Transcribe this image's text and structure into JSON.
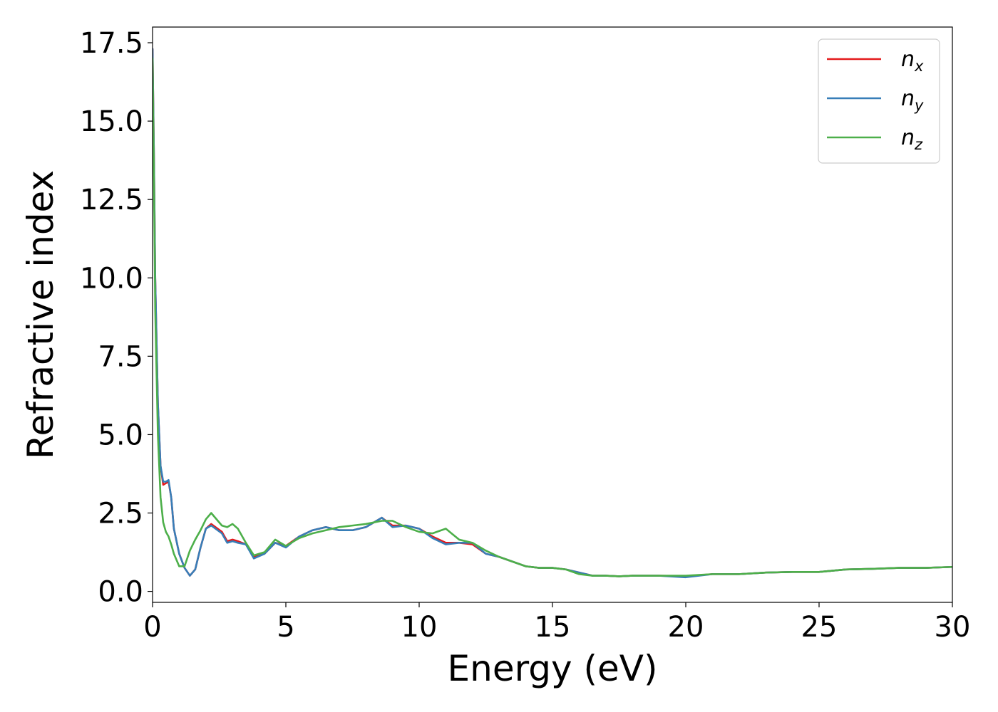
{
  "chart_data": {
    "type": "line",
    "xlabel": "Energy (eV)",
    "ylabel": "Refractive index",
    "xlim": [
      0,
      30
    ],
    "ylim": [
      -0.35,
      18.0
    ],
    "xticks": [
      0,
      5,
      10,
      15,
      20,
      25,
      30
    ],
    "xtick_labels": [
      "0",
      "5",
      "10",
      "15",
      "20",
      "25",
      "30"
    ],
    "yticks": [
      0,
      2.5,
      5,
      7.5,
      10,
      12.5,
      15,
      17.5
    ],
    "ytick_labels": [
      "0.0",
      "2.5",
      "5.0",
      "7.5",
      "10.0",
      "12.5",
      "15.0",
      "17.5"
    ],
    "grid": false,
    "legend_position": "top-right",
    "series": [
      {
        "name": "n",
        "subscript": "x",
        "color": "#e41a1c",
        "x": [
          0.0,
          0.05,
          0.1,
          0.2,
          0.3,
          0.4,
          0.5,
          0.6,
          0.7,
          0.8,
          1.0,
          1.2,
          1.4,
          1.6,
          1.8,
          2.0,
          2.2,
          2.6,
          2.8,
          3.0,
          3.2,
          3.5,
          3.8,
          4.2,
          4.6,
          5.0,
          5.5,
          6.0,
          6.5,
          7.0,
          7.5,
          8.0,
          8.6,
          9.0,
          9.5,
          10.0,
          10.5,
          11.0,
          11.5,
          12.0,
          12.5,
          13.0,
          13.5,
          14.0,
          14.5,
          15.0,
          15.5,
          16.0,
          16.5,
          17.0,
          17.5,
          18.0,
          19.0,
          20.0,
          21.0,
          22.0,
          23.0,
          24.0,
          25.0,
          26.0,
          27.0,
          28.0,
          29.0,
          30.0
        ],
        "y": [
          17.3,
          14.0,
          10.0,
          6.0,
          4.0,
          3.4,
          3.45,
          3.5,
          3.0,
          2.0,
          1.2,
          0.75,
          0.5,
          0.7,
          1.4,
          2.0,
          2.15,
          1.9,
          1.6,
          1.65,
          1.6,
          1.5,
          1.1,
          1.2,
          1.55,
          1.45,
          1.75,
          1.95,
          2.05,
          1.95,
          1.95,
          2.05,
          2.35,
          2.1,
          2.1,
          2.0,
          1.75,
          1.55,
          1.55,
          1.5,
          1.2,
          1.1,
          0.95,
          0.8,
          0.75,
          0.75,
          0.7,
          0.6,
          0.5,
          0.5,
          0.48,
          0.5,
          0.5,
          0.48,
          0.55,
          0.55,
          0.6,
          0.62,
          0.62,
          0.7,
          0.72,
          0.75,
          0.75,
          0.78
        ]
      },
      {
        "name": "n",
        "subscript": "y",
        "color": "#377eb8",
        "x": [
          0.0,
          0.05,
          0.1,
          0.2,
          0.3,
          0.4,
          0.5,
          0.6,
          0.7,
          0.8,
          1.0,
          1.2,
          1.4,
          1.6,
          1.8,
          2.0,
          2.2,
          2.6,
          2.8,
          3.0,
          3.2,
          3.5,
          3.8,
          4.2,
          4.6,
          5.0,
          5.5,
          6.0,
          6.5,
          7.0,
          7.5,
          8.0,
          8.6,
          9.0,
          9.5,
          10.0,
          10.5,
          11.0,
          11.5,
          12.0,
          12.5,
          13.0,
          13.5,
          14.0,
          14.5,
          15.0,
          15.5,
          16.0,
          16.5,
          17.0,
          17.5,
          18.0,
          19.0,
          20.0,
          21.0,
          22.0,
          23.0,
          24.0,
          25.0,
          26.0,
          27.0,
          28.0,
          29.0,
          30.0
        ],
        "y": [
          17.3,
          14.0,
          10.0,
          6.0,
          4.0,
          3.5,
          3.5,
          3.55,
          3.0,
          2.0,
          1.2,
          0.75,
          0.5,
          0.7,
          1.4,
          2.0,
          2.1,
          1.85,
          1.55,
          1.6,
          1.55,
          1.5,
          1.05,
          1.2,
          1.55,
          1.4,
          1.75,
          1.95,
          2.05,
          1.95,
          1.95,
          2.05,
          2.35,
          2.05,
          2.1,
          2.0,
          1.7,
          1.5,
          1.55,
          1.55,
          1.2,
          1.1,
          0.95,
          0.8,
          0.75,
          0.75,
          0.7,
          0.6,
          0.5,
          0.5,
          0.48,
          0.5,
          0.5,
          0.45,
          0.55,
          0.55,
          0.6,
          0.62,
          0.62,
          0.7,
          0.72,
          0.75,
          0.75,
          0.78
        ]
      },
      {
        "name": "n",
        "subscript": "z",
        "color": "#4daf4a",
        "x": [
          0.0,
          0.05,
          0.1,
          0.2,
          0.3,
          0.4,
          0.5,
          0.6,
          0.7,
          0.8,
          1.0,
          1.2,
          1.4,
          1.6,
          1.8,
          2.0,
          2.2,
          2.6,
          2.8,
          3.0,
          3.2,
          3.5,
          3.8,
          4.2,
          4.6,
          5.0,
          5.5,
          6.0,
          6.5,
          7.0,
          7.5,
          8.0,
          8.6,
          9.0,
          9.5,
          10.0,
          10.5,
          11.0,
          11.5,
          12.0,
          12.5,
          13.0,
          13.5,
          14.0,
          14.5,
          15.0,
          15.5,
          16.0,
          16.5,
          17.0,
          17.5,
          18.0,
          19.0,
          20.0,
          21.0,
          22.0,
          23.0,
          24.0,
          25.0,
          26.0,
          27.0,
          28.0,
          29.0,
          30.0
        ],
        "y": [
          17.0,
          13.5,
          9.0,
          5.0,
          3.0,
          2.2,
          1.9,
          1.75,
          1.5,
          1.2,
          0.8,
          0.8,
          1.3,
          1.65,
          1.95,
          2.3,
          2.5,
          2.1,
          2.05,
          2.15,
          2.0,
          1.55,
          1.15,
          1.25,
          1.65,
          1.45,
          1.7,
          1.85,
          1.95,
          2.05,
          2.1,
          2.15,
          2.25,
          2.25,
          2.05,
          1.9,
          1.85,
          2.0,
          1.65,
          1.55,
          1.3,
          1.1,
          0.95,
          0.8,
          0.75,
          0.75,
          0.7,
          0.55,
          0.5,
          0.5,
          0.48,
          0.5,
          0.5,
          0.5,
          0.55,
          0.55,
          0.6,
          0.62,
          0.62,
          0.7,
          0.72,
          0.75,
          0.75,
          0.78
        ]
      }
    ]
  }
}
